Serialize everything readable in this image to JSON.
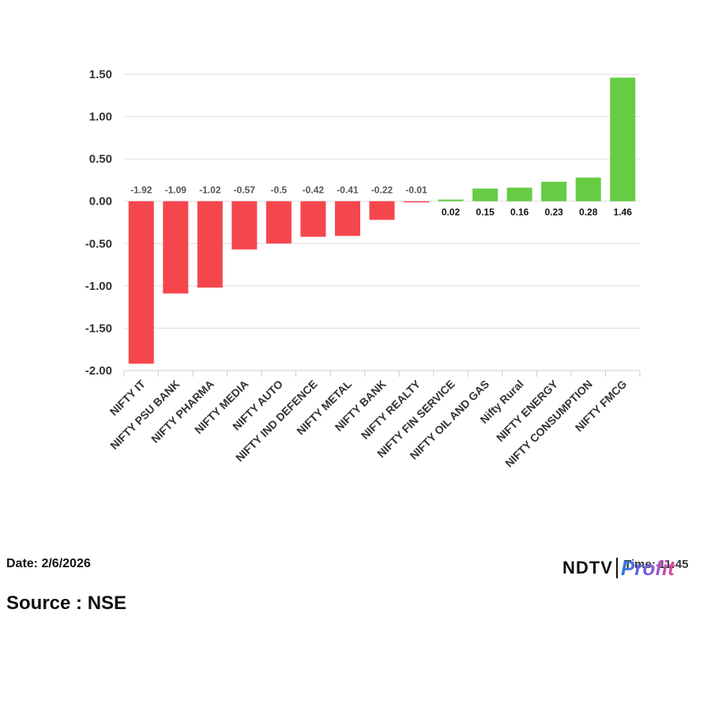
{
  "chart_data": {
    "type": "bar",
    "categories": [
      "NIFTY IT",
      "NIFTY PSU BANK",
      "NIFTY PHARMA",
      "NIFTY MEDIA",
      "NIFTY AUTO",
      "NIFTY IND DEFENCE",
      "NIFTY METAL",
      "NIFTY BANK",
      "NIFTY REALTY",
      "NIFTY FIN SERVICE",
      "NIFTY OIL AND GAS",
      "Nifty Rural",
      "NIFTY ENERGY",
      "NIFTY CONSUMPTION",
      "NIFTY FMCG"
    ],
    "values": [
      -1.92,
      -1.09,
      -1.02,
      -0.57,
      -0.5,
      -0.42,
      -0.41,
      -0.22,
      -0.01,
      0.02,
      0.15,
      0.16,
      0.23,
      0.28,
      1.46
    ],
    "value_labels": [
      "-1.92",
      "-1.09",
      "-1.02",
      "-0.57",
      "-0.5",
      "-0.42",
      "-0.41",
      "-0.22",
      "-0.01",
      "0.02",
      "0.15",
      "0.16",
      "0.23",
      "0.28",
      "1.46"
    ],
    "yticks": [
      1.5,
      1.0,
      0.5,
      0.0,
      -0.5,
      -1.0,
      -1.5,
      -2.0
    ],
    "ytick_labels": [
      "1.50",
      "1.00",
      "0.50",
      "0.00",
      "-0.50",
      "-1.00",
      "-1.50",
      "-2.00"
    ],
    "ylim": [
      -2.0,
      1.5
    ],
    "title": "",
    "xlabel": "",
    "ylabel": "",
    "grid": true,
    "legend": "none",
    "colors": {
      "negative": "#f5464d",
      "positive": "#66cc44",
      "grid": "#dddddd",
      "axis": "#cccccc"
    }
  },
  "footer": {
    "date": "Date: 2/6/2026",
    "source": "Source : NSE",
    "time": "Time: 11:45"
  },
  "brand": {
    "ndtv": "NDTV",
    "profit": "Profit"
  }
}
